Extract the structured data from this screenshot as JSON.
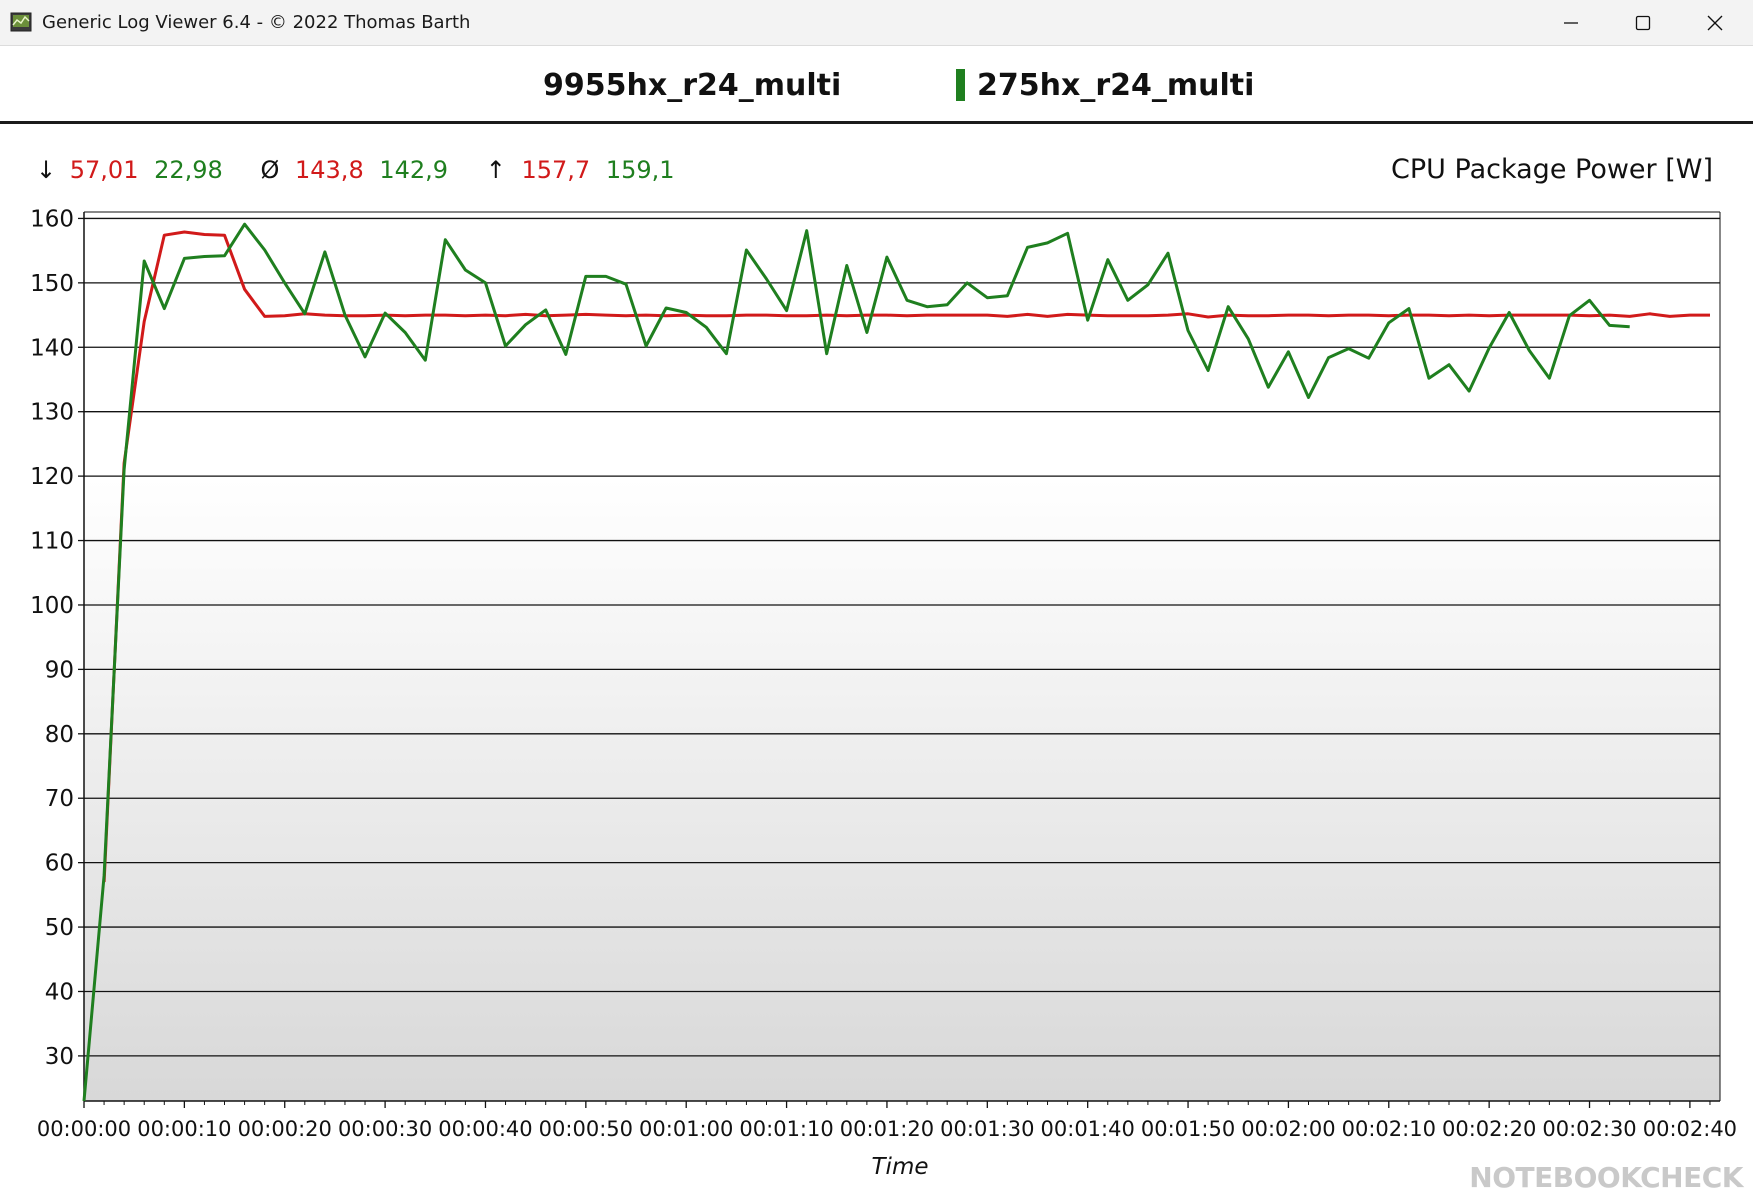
{
  "window": {
    "title": "Generic Log Viewer 6.4 - © 2022 Thomas Barth",
    "controls": {
      "minimize": "minimize-icon",
      "maximize": "maximize-icon",
      "close": "close-icon"
    }
  },
  "legend": [
    {
      "name": "9955hx_r24_multi",
      "color": "#d11a1a"
    },
    {
      "name": "275hx_r24_multi",
      "color": "#1f7f1f"
    }
  ],
  "stats": {
    "min_symbol": "↓",
    "avg_symbol": "Ø",
    "max_symbol": "↑",
    "min": [
      "57,01",
      "22,98"
    ],
    "avg": [
      "143,8",
      "142,9"
    ],
    "max": [
      "157,7",
      "159,1"
    ]
  },
  "watermark": "NOTEBOOKCHECK",
  "chart_data": {
    "type": "line",
    "title": "CPU Package Power [W]",
    "xlabel": "Time",
    "ylabel": "",
    "ylim": [
      23,
      161
    ],
    "yticks": [
      30,
      40,
      50,
      60,
      70,
      80,
      90,
      100,
      110,
      120,
      130,
      140,
      150,
      160
    ],
    "xlim": [
      0,
      163
    ],
    "xticks": [
      {
        "v": 0,
        "label": "00:00:00"
      },
      {
        "v": 10,
        "label": "00:00:10"
      },
      {
        "v": 20,
        "label": "00:00:20"
      },
      {
        "v": 30,
        "label": "00:00:30"
      },
      {
        "v": 40,
        "label": "00:00:40"
      },
      {
        "v": 50,
        "label": "00:00:50"
      },
      {
        "v": 60,
        "label": "00:01:00"
      },
      {
        "v": 70,
        "label": "00:01:10"
      },
      {
        "v": 80,
        "label": "00:01:20"
      },
      {
        "v": 90,
        "label": "00:01:30"
      },
      {
        "v": 100,
        "label": "00:01:40"
      },
      {
        "v": 110,
        "label": "00:01:50"
      },
      {
        "v": 120,
        "label": "00:02:00"
      },
      {
        "v": 130,
        "label": "00:02:10"
      },
      {
        "v": 140,
        "label": "00:02:20"
      },
      {
        "v": 150,
        "label": "00:02:30"
      },
      {
        "v": 160,
        "label": "00:02:40"
      }
    ],
    "grid": true,
    "legend_position": "top",
    "series": [
      {
        "name": "9955hx_r24_multi",
        "color": "#d11a1a",
        "x": [
          2,
          4,
          6,
          8,
          10,
          12,
          14,
          16,
          18,
          20,
          22,
          24,
          26,
          28,
          30,
          32,
          34,
          36,
          38,
          40,
          42,
          44,
          46,
          48,
          50,
          52,
          54,
          56,
          58,
          60,
          62,
          64,
          66,
          68,
          70,
          72,
          74,
          76,
          78,
          80,
          82,
          84,
          86,
          88,
          90,
          92,
          94,
          96,
          98,
          100,
          102,
          104,
          106,
          108,
          110,
          112,
          114,
          116,
          118,
          120,
          122,
          124,
          126,
          128,
          130,
          132,
          134,
          136,
          138,
          140,
          142,
          144,
          146,
          148,
          150,
          152,
          154,
          156,
          158,
          160,
          162
        ],
        "y": [
          57.0,
          122.0,
          144.0,
          157.4,
          157.9,
          157.5,
          157.4,
          149.0,
          144.8,
          144.9,
          145.2,
          145.0,
          144.9,
          144.9,
          145.0,
          144.9,
          145.0,
          145.0,
          144.9,
          145.0,
          144.9,
          145.1,
          144.9,
          145.0,
          145.1,
          145.0,
          144.9,
          145.0,
          144.9,
          145.0,
          144.9,
          144.9,
          145.0,
          145.0,
          144.9,
          144.9,
          145.0,
          144.9,
          145.0,
          145.0,
          144.9,
          145.0,
          145.0,
          145.0,
          145.0,
          144.8,
          145.1,
          144.8,
          145.1,
          145.0,
          144.9,
          144.9,
          144.9,
          145.0,
          145.2,
          144.7,
          145.0,
          144.9,
          144.9,
          145.0,
          145.0,
          144.9,
          145.0,
          145.0,
          144.9,
          145.0,
          145.0,
          144.9,
          145.0,
          144.9,
          145.0,
          145.0,
          145.0,
          145.0,
          144.9,
          145.0,
          144.8,
          145.2,
          144.8,
          145.0,
          145.0
        ]
      },
      {
        "name": "275hx_r24_multi",
        "color": "#1f7f1f",
        "x": [
          0,
          2,
          4,
          6,
          8,
          10,
          12,
          14,
          16,
          18,
          20,
          22,
          24,
          26,
          28,
          30,
          32,
          34,
          36,
          38,
          40,
          42,
          44,
          46,
          48,
          50,
          52,
          54,
          56,
          58,
          60,
          62,
          64,
          66,
          68,
          70,
          72,
          74,
          76,
          78,
          80,
          82,
          84,
          86,
          88,
          90,
          92,
          94,
          96,
          98,
          100,
          102,
          104,
          106,
          108,
          110,
          112,
          114,
          116,
          118,
          120,
          122,
          124,
          126,
          128,
          130,
          132,
          134,
          136,
          138,
          140,
          142,
          144,
          146,
          148,
          150,
          152,
          154
        ],
        "y": [
          23.0,
          58.0,
          121.0,
          153.4,
          146.0,
          153.8,
          154.1,
          154.2,
          159.1,
          155.1,
          150.0,
          145.2,
          154.8,
          145.0,
          138.5,
          145.3,
          142.3,
          138.0,
          156.7,
          152.0,
          150.0,
          140.2,
          143.5,
          145.8,
          138.9,
          151.0,
          151.0,
          149.8,
          140.2,
          146.1,
          145.4,
          143.1,
          139.0,
          155.1,
          150.6,
          145.7,
          158.1,
          139.0,
          152.7,
          142.3,
          154.0,
          147.3,
          146.3,
          146.6,
          150.0,
          147.7,
          148.0,
          155.5,
          156.2,
          157.7,
          144.2,
          153.6,
          147.3,
          149.7,
          154.6,
          142.6,
          136.4,
          146.3,
          141.3,
          133.8,
          139.3,
          132.2,
          138.4,
          139.8,
          138.3,
          143.8,
          146.0,
          135.2,
          137.3,
          133.2,
          139.9,
          145.4,
          139.5,
          135.2,
          144.9,
          147.3,
          143.4,
          143.2
        ]
      }
    ]
  }
}
